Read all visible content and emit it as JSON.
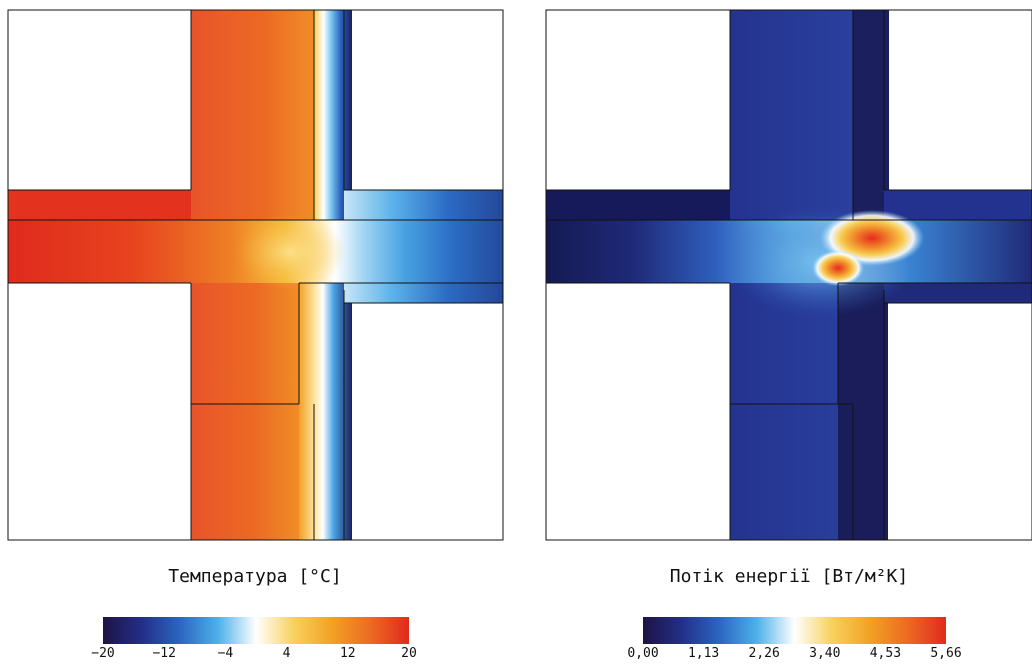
{
  "panels": [
    {
      "id": "temperature",
      "title": "Температура [°C]",
      "colorbar_ticks": [
        "−20",
        "−12",
        "−4",
        "4",
        "12",
        "20"
      ],
      "colormap": [
        "#1d1346",
        "#232e86",
        "#2b65c0",
        "#4db0ea",
        "#ffffff",
        "#f7d15c",
        "#f2a124",
        "#ec6a23",
        "#e02a1d"
      ]
    },
    {
      "id": "energy-flux",
      "title": "Потік енергії [Вт/м²K]",
      "colorbar_ticks": [
        "0,00",
        "1,13",
        "2,26",
        "3,40",
        "4,53",
        "5,66"
      ],
      "colormap": [
        "#1d1346",
        "#232e86",
        "#2b65c0",
        "#4db0ea",
        "#ffffff",
        "#f7d15c",
        "#f2a124",
        "#ec6a23",
        "#e02a1d"
      ]
    }
  ]
}
